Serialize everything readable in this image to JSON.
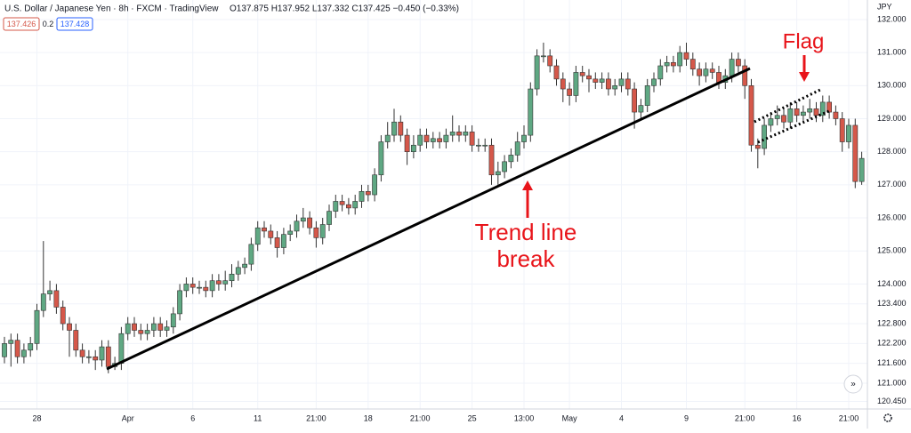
{
  "header": {
    "symbol": "U.S. Dollar / Japanese Yen · 8h · FXCM · TradingView",
    "ohlc": "O137.875 H137.952 L137.332 C137.425 −0.450 (−0.33%)",
    "bid": "137.426",
    "spread": "0.2",
    "ask": "137.428"
  },
  "chart_data": {
    "type": "candlestick",
    "currency": "JPY",
    "up_color": "#5fa883",
    "down_color": "#d5584a",
    "annotations": [
      "Flag",
      "Trend line",
      "break"
    ],
    "categories": [
      null,
      null,
      null,
      null,
      null,
      "28",
      null,
      null,
      null,
      null,
      null,
      null,
      null,
      null,
      null,
      null,
      null,
      null,
      null,
      "Apr",
      null,
      null,
      null,
      null,
      null,
      null,
      null,
      null,
      null,
      "6",
      null,
      null,
      null,
      null,
      null,
      null,
      null,
      null,
      null,
      "11",
      null,
      null,
      null,
      null,
      null,
      null,
      null,
      null,
      "21:00",
      null,
      null,
      null,
      null,
      null,
      null,
      null,
      "18",
      null,
      null,
      null,
      null,
      null,
      null,
      null,
      "21:00",
      null,
      null,
      null,
      null,
      null,
      null,
      null,
      "25",
      null,
      null,
      null,
      null,
      null,
      null,
      null,
      "13:00",
      null,
      null,
      null,
      null,
      null,
      null,
      "May",
      null,
      null,
      null,
      null,
      null,
      null,
      null,
      "4",
      null,
      null,
      null,
      null,
      null,
      null,
      null,
      null,
      null,
      "9",
      null,
      null,
      null,
      null,
      null,
      null,
      null,
      null,
      "21:00",
      null,
      null,
      null,
      null,
      null,
      null,
      null,
      "16",
      null,
      null,
      null,
      null,
      null,
      null,
      null,
      "21:00",
      null,
      null
    ],
    "open": [
      121.8,
      122.2,
      122.3,
      121.8,
      122.0,
      122.2,
      123.2,
      123.7,
      123.8,
      123.3,
      122.8,
      122.6,
      122.0,
      121.8,
      121.8,
      121.7,
      122.1,
      121.5,
      121.6,
      122.5,
      122.8,
      122.6,
      122.5,
      122.6,
      122.8,
      122.6,
      122.7,
      123.1,
      123.8,
      124.0,
      123.9,
      123.9,
      123.8,
      124.1,
      124.0,
      124.1,
      124.3,
      124.5,
      124.6,
      125.2,
      125.7,
      125.6,
      125.4,
      125.1,
      125.5,
      125.6,
      125.9,
      126.0,
      125.7,
      125.4,
      125.8,
      126.2,
      126.5,
      126.4,
      126.3,
      126.5,
      126.8,
      126.7,
      127.3,
      128.3,
      128.5,
      128.9,
      128.5,
      128.0,
      128.2,
      128.5,
      128.3,
      128.4,
      128.3,
      128.5,
      128.6,
      128.5,
      128.6,
      128.2,
      128.2,
      128.2,
      127.3,
      127.4,
      127.7,
      127.9,
      128.3,
      128.5,
      129.9,
      130.9,
      130.9,
      130.6,
      130.2,
      129.9,
      129.7,
      130.4,
      130.3,
      130.2,
      130.1,
      130.2,
      129.9,
      130.0,
      130.2,
      129.9,
      129.2,
      129.4,
      130.0,
      130.2,
      130.6,
      130.7,
      130.6,
      131.0,
      130.8,
      130.5,
      130.3,
      130.5,
      130.4,
      130.1,
      130.3,
      130.8,
      130.6,
      130.0,
      128.2,
      128.1,
      128.8,
      129.0,
      129.1,
      128.9,
      129.3,
      129.1,
      129.2,
      129.3,
      129.1,
      129.5,
      129.2,
      129.0,
      128.3,
      128.8,
      127.1
    ],
    "high": [
      122.4,
      122.5,
      122.5,
      122.2,
      122.4,
      123.4,
      125.3,
      124.1,
      124.0,
      123.5,
      123.0,
      122.8,
      122.2,
      122.0,
      122.0,
      122.3,
      122.3,
      121.8,
      122.7,
      123.0,
      123.0,
      122.8,
      122.8,
      123.0,
      123.0,
      122.9,
      123.3,
      124.0,
      124.2,
      124.2,
      124.1,
      124.1,
      124.3,
      124.3,
      124.4,
      124.6,
      124.7,
      124.8,
      125.4,
      125.9,
      125.9,
      125.8,
      125.6,
      125.7,
      125.8,
      126.1,
      126.3,
      126.2,
      125.9,
      126.0,
      126.4,
      126.7,
      126.7,
      126.6,
      126.7,
      127.0,
      127.0,
      127.5,
      128.5,
      128.9,
      129.3,
      129.1,
      128.7,
      128.5,
      128.7,
      128.7,
      128.6,
      128.6,
      128.7,
      129.1,
      128.8,
      128.8,
      128.8,
      128.4,
      128.4,
      128.4,
      127.7,
      127.9,
      128.1,
      128.6,
      128.8,
      130.1,
      131.1,
      131.3,
      131.1,
      130.8,
      130.4,
      130.1,
      130.6,
      130.6,
      130.5,
      130.4,
      130.4,
      130.4,
      130.2,
      130.4,
      130.4,
      130.1,
      129.6,
      130.2,
      130.4,
      130.8,
      130.9,
      130.9,
      131.2,
      131.3,
      131.0,
      130.7,
      130.7,
      130.7,
      130.6,
      130.5,
      131.0,
      131.0,
      130.8,
      130.2,
      128.4,
      129.0,
      129.2,
      129.4,
      129.3,
      129.5,
      129.5,
      129.4,
      129.6,
      129.5,
      129.7,
      129.7,
      129.4,
      129.2,
      129.0,
      129.0,
      128.0
    ],
    "low": [
      121.6,
      121.5,
      121.6,
      121.6,
      121.8,
      122.0,
      123.0,
      123.5,
      123.1,
      122.6,
      121.8,
      121.8,
      121.6,
      121.6,
      121.4,
      121.5,
      121.3,
      121.4,
      121.4,
      122.3,
      122.4,
      122.3,
      122.3,
      122.4,
      122.4,
      122.4,
      122.5,
      122.9,
      123.6,
      123.7,
      123.7,
      123.6,
      123.6,
      123.8,
      123.8,
      123.9,
      124.1,
      124.3,
      124.4,
      125.0,
      125.4,
      125.2,
      124.8,
      124.9,
      125.3,
      125.4,
      125.7,
      125.5,
      125.1,
      125.2,
      125.6,
      126.0,
      126.2,
      126.1,
      126.1,
      126.3,
      126.5,
      126.5,
      127.1,
      128.1,
      128.3,
      128.3,
      127.6,
      127.8,
      128.0,
      128.1,
      128.1,
      128.1,
      128.1,
      128.3,
      128.3,
      128.3,
      128.0,
      128.0,
      128.0,
      127.0,
      127.0,
      127.2,
      127.5,
      127.7,
      128.1,
      128.3,
      129.7,
      130.7,
      130.4,
      130.0,
      129.5,
      129.4,
      129.5,
      130.1,
      129.8,
      129.9,
      129.9,
      129.7,
      129.7,
      129.8,
      129.7,
      128.7,
      129.0,
      129.2,
      129.8,
      130.0,
      130.4,
      130.4,
      130.4,
      130.6,
      130.3,
      130.0,
      130.1,
      130.2,
      129.9,
      129.9,
      130.1,
      130.4,
      129.6,
      128.0,
      127.5,
      127.9,
      128.6,
      128.8,
      128.7,
      128.7,
      128.9,
      128.9,
      129.0,
      128.9,
      128.9,
      129.0,
      128.8,
      128.0,
      128.1,
      126.9,
      127.0
    ],
    "close": [
      122.2,
      122.3,
      121.8,
      122.0,
      122.2,
      123.2,
      123.7,
      123.8,
      123.3,
      122.8,
      122.6,
      122.0,
      121.8,
      121.8,
      121.7,
      122.1,
      121.5,
      121.6,
      122.5,
      122.8,
      122.6,
      122.5,
      122.6,
      122.8,
      122.6,
      122.7,
      123.1,
      123.8,
      124.0,
      123.9,
      123.9,
      123.8,
      124.1,
      124.0,
      124.1,
      124.3,
      124.5,
      124.6,
      125.2,
      125.7,
      125.6,
      125.4,
      125.1,
      125.5,
      125.6,
      125.9,
      126.0,
      125.7,
      125.4,
      125.8,
      126.2,
      126.5,
      126.4,
      126.3,
      126.5,
      126.8,
      126.7,
      127.3,
      128.3,
      128.5,
      128.9,
      128.5,
      128.0,
      128.2,
      128.5,
      128.3,
      128.4,
      128.3,
      128.5,
      128.6,
      128.5,
      128.6,
      128.2,
      128.2,
      128.2,
      127.3,
      127.4,
      127.7,
      127.9,
      128.3,
      128.5,
      129.9,
      130.9,
      130.9,
      130.6,
      130.2,
      129.9,
      129.7,
      130.4,
      130.3,
      130.2,
      130.1,
      130.2,
      129.9,
      130.0,
      130.2,
      129.9,
      129.2,
      129.4,
      130.0,
      130.2,
      130.6,
      130.7,
      130.6,
      131.0,
      130.8,
      130.5,
      130.3,
      130.5,
      130.4,
      130.1,
      130.3,
      130.8,
      130.6,
      130.0,
      128.2,
      128.1,
      128.8,
      129.0,
      129.1,
      128.9,
      129.3,
      129.1,
      129.2,
      129.3,
      129.1,
      129.5,
      129.2,
      129.0,
      128.3,
      128.8,
      127.1,
      127.8
    ],
    "ylim": [
      120.22,
      132.59
    ],
    "yticks": [
      {
        "value": 132,
        "label": "132.000"
      },
      {
        "value": 131,
        "label": "131.000"
      },
      {
        "value": 130,
        "label": "130.000"
      },
      {
        "value": 129,
        "label": "129.000"
      },
      {
        "value": 128,
        "label": "128.000"
      },
      {
        "value": 127,
        "label": "127.000"
      },
      {
        "value": 126,
        "label": "126.000"
      },
      {
        "value": 125,
        "label": "125.000"
      },
      {
        "value": 124,
        "label": "124.000"
      },
      {
        "value": 123.4,
        "label": "123.400"
      },
      {
        "value": 122.8,
        "label": "122.800"
      },
      {
        "value": 122.2,
        "label": "122.200"
      },
      {
        "value": 121.6,
        "label": "121.600"
      },
      {
        "value": 121,
        "label": "121.000"
      },
      {
        "value": 120.45,
        "label": "120.450"
      }
    ],
    "grid": true
  }
}
